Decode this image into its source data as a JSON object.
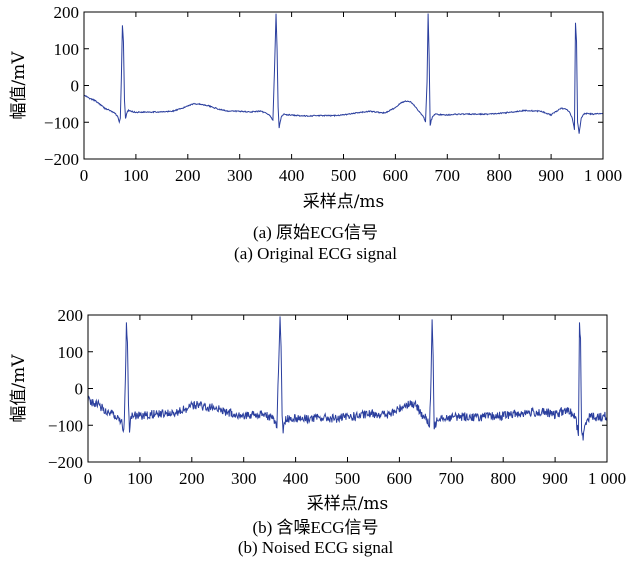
{
  "figure": {
    "panels": [
      {
        "caption_cn": "(a) 原始ECG信号",
        "caption_en": "(a) Original ECG signal"
      },
      {
        "caption_cn": "(b) 含噪ECG信号",
        "caption_en": "(b) Noised ECG signal"
      }
    ]
  },
  "chart_data": [
    {
      "type": "line",
      "title": "",
      "xlabel": "采样点/ms",
      "ylabel": "幅值/mV",
      "xlim": [
        0,
        1000
      ],
      "ylim": [
        -200,
        200
      ],
      "xticks": [
        0,
        100,
        200,
        300,
        400,
        500,
        600,
        700,
        800,
        900,
        1000
      ],
      "xtick_labels": [
        "0",
        "100",
        "200",
        "300",
        "400",
        "500",
        "600",
        "700",
        "800",
        "900",
        "1 000"
      ],
      "yticks": [
        -200,
        -100,
        0,
        100,
        200
      ],
      "ytick_labels": [
        "−200",
        "−100",
        "0",
        "100",
        "200"
      ],
      "grid": false,
      "line_color": "#2b3f9e",
      "series": [
        {
          "x": [
            0,
            5,
            10,
            20,
            30,
            40,
            50,
            55,
            60,
            65,
            68,
            70,
            72,
            74,
            76,
            78,
            80,
            82,
            84,
            86,
            90,
            100,
            120,
            150,
            170,
            190,
            200,
            210,
            220,
            240,
            260,
            280,
            300,
            320,
            340,
            350,
            355,
            360,
            364,
            367,
            370,
            372,
            374,
            376,
            378,
            380,
            385,
            390,
            400,
            420,
            450,
            480,
            500,
            520,
            550,
            580,
            600,
            610,
            620,
            630,
            640,
            645,
            650,
            655,
            658,
            661,
            663,
            665,
            667,
            669,
            672,
            676,
            680,
            690,
            700,
            720,
            750,
            780,
            800,
            820,
            850,
            880,
            900,
            910,
            920,
            930,
            935,
            940,
            943,
            945,
            947,
            949,
            951,
            954,
            958,
            962,
            970,
            980,
            1000
          ],
          "y": [
            -27,
            -30,
            -35,
            -40,
            -50,
            -62,
            -68,
            -72,
            -76,
            -85,
            -100,
            -90,
            20,
            165,
            120,
            -40,
            -90,
            -78,
            -70,
            -68,
            -70,
            -73,
            -72,
            -72,
            -70,
            -62,
            -55,
            -50,
            -50,
            -55,
            -65,
            -70,
            -70,
            -72,
            -70,
            -75,
            -78,
            -85,
            -95,
            40,
            195,
            100,
            -60,
            -115,
            -100,
            -85,
            -78,
            -80,
            -80,
            -83,
            -82,
            -82,
            -80,
            -76,
            -70,
            -75,
            -60,
            -48,
            -42,
            -45,
            -60,
            -70,
            -78,
            -88,
            -100,
            10,
            195,
            80,
            -110,
            -95,
            -85,
            -78,
            -78,
            -80,
            -80,
            -78,
            -78,
            -78,
            -76,
            -73,
            -68,
            -70,
            -80,
            -70,
            -62,
            -65,
            -72,
            -85,
            -105,
            -120,
            170,
            120,
            -100,
            -130,
            -90,
            -78,
            -76,
            -78,
            -76
          ]
        }
      ]
    },
    {
      "type": "line",
      "title": "",
      "xlabel": "采样点/ms",
      "ylabel": "幅值/mV",
      "xlim": [
        0,
        1000
      ],
      "ylim": [
        -200,
        200
      ],
      "xticks": [
        0,
        100,
        200,
        300,
        400,
        500,
        600,
        700,
        800,
        900,
        1000
      ],
      "xtick_labels": [
        "0",
        "100",
        "200",
        "300",
        "400",
        "500",
        "600",
        "700",
        "800",
        "900",
        "1 000"
      ],
      "yticks": [
        -200,
        -100,
        0,
        100,
        200
      ],
      "ytick_labels": [
        "−200",
        "−100",
        "0",
        "100",
        "200"
      ],
      "grid": false,
      "line_color": "#2b3f9e",
      "noise_amplitude": 12,
      "series": [
        {
          "x": [
            0,
            5,
            10,
            20,
            30,
            40,
            50,
            55,
            60,
            65,
            68,
            70,
            72,
            74,
            76,
            78,
            80,
            82,
            84,
            86,
            90,
            100,
            120,
            150,
            170,
            190,
            200,
            210,
            220,
            240,
            260,
            280,
            300,
            320,
            340,
            350,
            355,
            360,
            364,
            367,
            370,
            372,
            374,
            376,
            378,
            380,
            385,
            390,
            400,
            420,
            450,
            480,
            500,
            520,
            550,
            580,
            600,
            610,
            620,
            630,
            640,
            645,
            650,
            655,
            658,
            661,
            663,
            665,
            667,
            669,
            672,
            676,
            680,
            690,
            700,
            720,
            750,
            780,
            800,
            820,
            850,
            880,
            900,
            910,
            920,
            930,
            935,
            940,
            943,
            945,
            947,
            949,
            951,
            954,
            958,
            962,
            970,
            980,
            1000
          ],
          "y": [
            -30,
            -35,
            -40,
            -45,
            -55,
            -65,
            -70,
            -75,
            -80,
            -90,
            -110,
            -95,
            30,
            175,
            130,
            -50,
            -110,
            -85,
            -75,
            -70,
            -72,
            -75,
            -70,
            -68,
            -65,
            -55,
            -48,
            -45,
            -48,
            -52,
            -60,
            -68,
            -72,
            -72,
            -70,
            -75,
            -80,
            -90,
            -100,
            50,
            200,
            110,
            -70,
            -120,
            -100,
            -85,
            -80,
            -82,
            -80,
            -82,
            -80,
            -82,
            -78,
            -75,
            -68,
            -72,
            -55,
            -45,
            -40,
            -45,
            -62,
            -72,
            -80,
            -90,
            -105,
            20,
            195,
            90,
            -120,
            -100,
            -85,
            -78,
            -76,
            -80,
            -78,
            -76,
            -78,
            -76,
            -74,
            -70,
            -65,
            -65,
            -72,
            -65,
            -60,
            -65,
            -70,
            -85,
            -110,
            -125,
            180,
            130,
            -110,
            -140,
            -95,
            -80,
            -75,
            -78,
            -75
          ]
        }
      ]
    }
  ]
}
